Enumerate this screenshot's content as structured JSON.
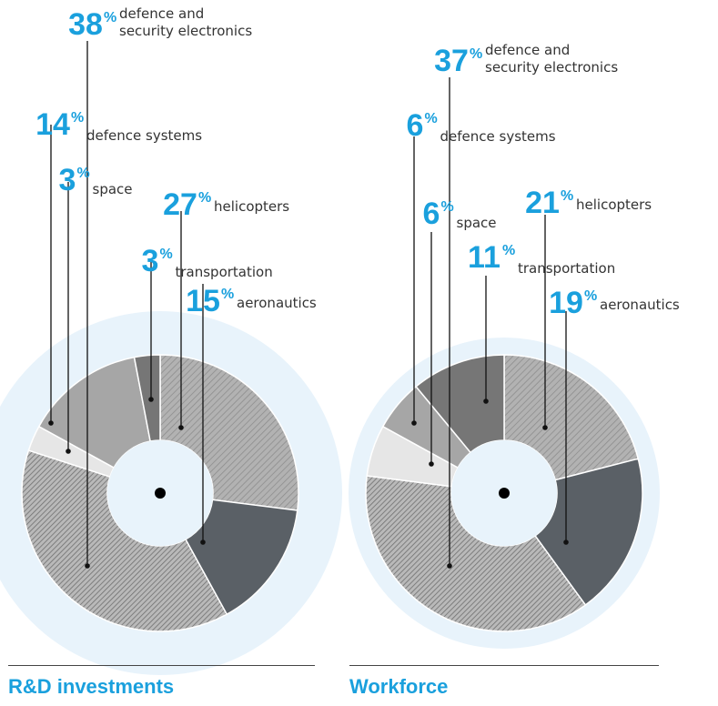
{
  "colors": {
    "accent": "#1aa0dd",
    "halo": "#e8f3fb",
    "helicopters": "#aaaaaa",
    "aeronautics": "#5a6066",
    "defence_and_security_electronics": "#a5a5a5",
    "space": "#e6e6e6",
    "defence_systems": "#a6a6a6",
    "transportation": "#767676"
  },
  "chart_data": [
    {
      "type": "pie",
      "title": "R&D investments",
      "categories": [
        "helicopters",
        "aeronautics",
        "defence and security electronics",
        "space",
        "defence systems",
        "transportation"
      ],
      "values": [
        27,
        15,
        38,
        3,
        14,
        3
      ],
      "unit": "%",
      "labels": [
        {
          "value": "27",
          "sign": "%",
          "text": "helicopters"
        },
        {
          "value": "15",
          "sign": "%",
          "text": "aeronautics"
        },
        {
          "value": "38",
          "sign": "%",
          "text": [
            "defence and",
            "security electronics"
          ]
        },
        {
          "value": "3",
          "sign": "%",
          "text": "space"
        },
        {
          "value": "14",
          "sign": "%",
          "text": "defence systems"
        },
        {
          "value": "3",
          "sign": "%",
          "text": "transportation"
        }
      ]
    },
    {
      "type": "pie",
      "title": "Workforce",
      "categories": [
        "helicopters",
        "aeronautics",
        "defence and security electronics",
        "space",
        "defence systems",
        "transportation"
      ],
      "values": [
        21,
        19,
        37,
        6,
        6,
        11
      ],
      "unit": "%",
      "labels": [
        {
          "value": "21",
          "sign": "%",
          "text": "helicopters"
        },
        {
          "value": "19",
          "sign": "%",
          "text": "aeronautics"
        },
        {
          "value": "37",
          "sign": "%",
          "text": [
            "defence and",
            "security electronics"
          ]
        },
        {
          "value": "6",
          "sign": "%",
          "text": "space"
        },
        {
          "value": "6",
          "sign": "%",
          "text": "defence systems"
        },
        {
          "value": "11",
          "sign": "%",
          "text": "transportation"
        }
      ]
    }
  ]
}
